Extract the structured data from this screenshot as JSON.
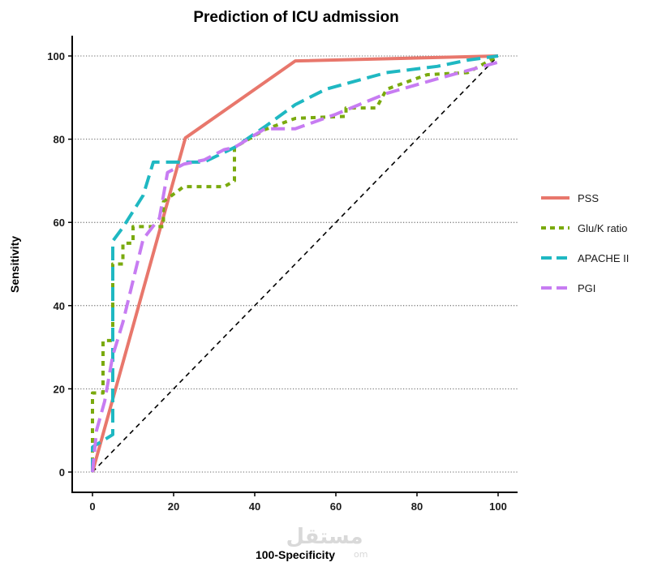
{
  "chart_data": {
    "type": "line",
    "title": "Prediction of ICU admission",
    "xlabel": "100-Specificity",
    "ylabel": "Sensitivity",
    "xlim": [
      0,
      100
    ],
    "ylim": [
      0,
      100
    ],
    "x_ticks": [
      0,
      20,
      40,
      60,
      80,
      100
    ],
    "y_ticks": [
      0,
      20,
      40,
      60,
      80,
      100
    ],
    "grid": "horizontal dotted",
    "legend_position": "right",
    "reference_line": {
      "style": "dashed",
      "color": "#000000",
      "points": [
        [
          0,
          0
        ],
        [
          100,
          100
        ]
      ]
    },
    "series": [
      {
        "name": "PSS",
        "color": "#E8776C",
        "dash": "solid",
        "points": [
          [
            0,
            0
          ],
          [
            22.9,
            80.3
          ],
          [
            50,
            98.8
          ],
          [
            100,
            100
          ]
        ]
      },
      {
        "name": "Glu/K ratio",
        "color": "#7AAA0E",
        "dash": "dotted",
        "points": [
          [
            0,
            0
          ],
          [
            0,
            19
          ],
          [
            2.6,
            19
          ],
          [
            2.6,
            31.6
          ],
          [
            5,
            31.6
          ],
          [
            5,
            50
          ],
          [
            7.5,
            50
          ],
          [
            7.5,
            55
          ],
          [
            10,
            55
          ],
          [
            10,
            59
          ],
          [
            17.5,
            59
          ],
          [
            17.5,
            65
          ],
          [
            22.5,
            68.6
          ],
          [
            32.5,
            68.6
          ],
          [
            35,
            70
          ],
          [
            35,
            78
          ],
          [
            42.5,
            82.3
          ],
          [
            50,
            85
          ],
          [
            62.5,
            85.5
          ],
          [
            62.5,
            87.5
          ],
          [
            70,
            87.5
          ],
          [
            72.5,
            92
          ],
          [
            82.5,
            95.5
          ],
          [
            92.5,
            96
          ],
          [
            100,
            100
          ]
        ]
      },
      {
        "name": "APACHE II",
        "color": "#1FB8C2",
        "dash": "dashed",
        "points": [
          [
            0,
            0
          ],
          [
            0,
            6
          ],
          [
            2.5,
            7.5
          ],
          [
            5,
            9
          ],
          [
            5,
            55.5
          ],
          [
            7.5,
            58.8
          ],
          [
            12.5,
            66.5
          ],
          [
            15,
            74.5
          ],
          [
            22.5,
            74.5
          ],
          [
            27.5,
            74.5
          ],
          [
            35,
            78
          ],
          [
            42.5,
            83
          ],
          [
            50,
            88.3
          ],
          [
            57.5,
            92
          ],
          [
            72.5,
            96
          ],
          [
            85,
            97.5
          ],
          [
            92.5,
            99
          ],
          [
            100,
            100
          ]
        ]
      },
      {
        "name": "PGI",
        "color": "#C77CF2",
        "dash": "dashed",
        "points": [
          [
            0,
            0
          ],
          [
            1,
            10
          ],
          [
            3,
            17
          ],
          [
            5,
            28
          ],
          [
            7.5,
            36
          ],
          [
            12.5,
            56
          ],
          [
            16.5,
            61
          ],
          [
            18.5,
            72
          ],
          [
            22.5,
            74
          ],
          [
            27.5,
            75
          ],
          [
            32.5,
            77.5
          ],
          [
            35,
            78
          ],
          [
            42.5,
            82.5
          ],
          [
            50,
            82.5
          ],
          [
            60,
            86
          ],
          [
            72.5,
            91
          ],
          [
            85,
            94.5
          ],
          [
            100,
            98.5
          ]
        ]
      }
    ]
  },
  "watermark": {
    "text": "مستقل",
    "subtext": "om"
  }
}
